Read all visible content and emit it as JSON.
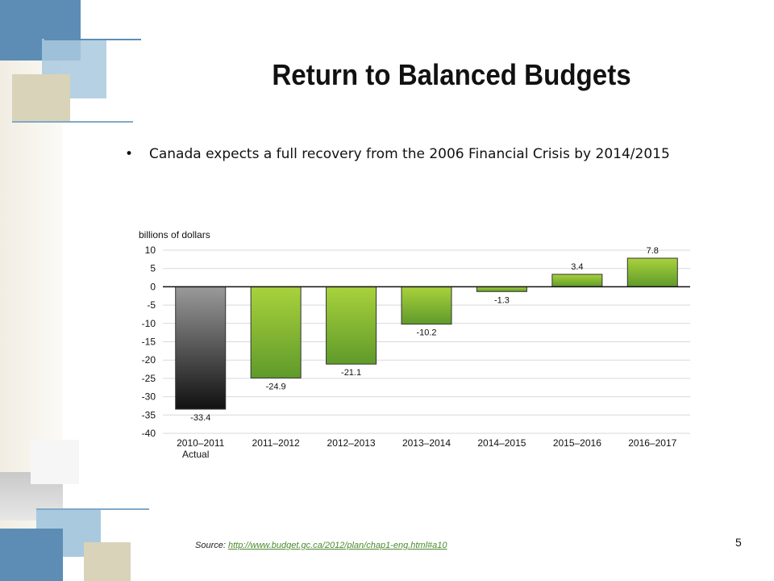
{
  "slide": {
    "title": "Return to Balanced Budgets",
    "bullet": "Canada expects a full recovery from the 2006 Financial Crisis by 2014/2015",
    "source_label": "Source:",
    "source_link": "http://www.budget.gc.ca/2012/plan/chap1-eng.html#a10",
    "page_number": "5"
  },
  "colors": {
    "green_top": "#a9d23c",
    "green_bottom": "#5f9a2a",
    "gray_top": "#9a9a9a",
    "gray_bottom": "#111111",
    "grid": "#d9d9d9",
    "accent_blue": "#7fb4d6",
    "accent_tan": "#d9d3b9"
  },
  "chart_data": {
    "type": "bar",
    "ylabel": "billions of dollars",
    "categories": [
      "2010–2011",
      "2011–2012",
      "2012–2013",
      "2013–2014",
      "2014–2015",
      "2015–2016",
      "2016–2017"
    ],
    "category_sublabels": [
      "Actual",
      "",
      "",
      "",
      "",
      "",
      ""
    ],
    "values": [
      -33.4,
      -24.9,
      -21.1,
      -10.2,
      -1.3,
      3.4,
      7.8
    ],
    "value_labels": [
      "-33.4",
      "-24.9",
      "-21.1",
      "-10.2",
      "-1.3",
      "3.4",
      "7.8"
    ],
    "bar_styles": [
      "gray",
      "green",
      "green",
      "green",
      "green",
      "green",
      "green"
    ],
    "yticks": [
      10,
      5,
      0,
      -5,
      -10,
      -15,
      -20,
      -25,
      -30,
      -35,
      -40
    ],
    "ytick_labels": [
      "10",
      "5",
      "0",
      "-5",
      "-10",
      "-15",
      "-20",
      "-25",
      "-30",
      "-35",
      "-40"
    ],
    "ylim": [
      -40,
      10
    ],
    "grid": true,
    "legend": "none"
  }
}
